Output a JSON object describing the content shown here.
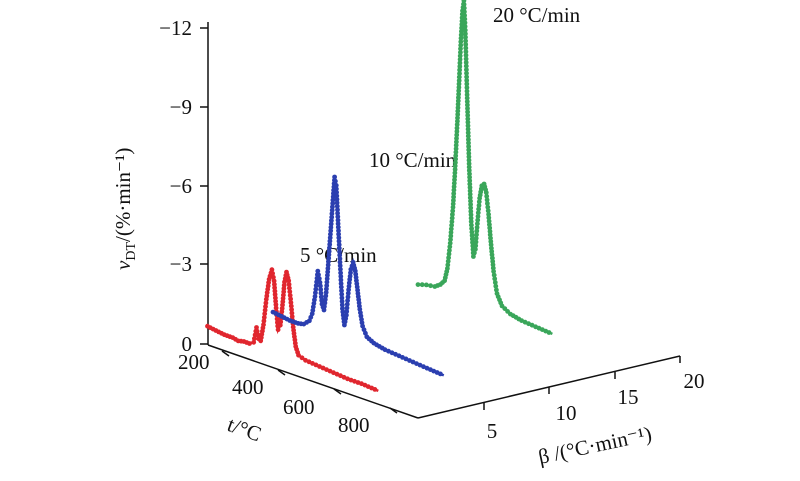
{
  "chart_data": {
    "type": "line",
    "title": "",
    "xlabel": "β /(°C·min⁻¹)",
    "tlabel": "t/°C",
    "ylabel_main": "v",
    "ylabel_sub": "DT",
    "ylabel_rest": "/(%·min⁻¹)",
    "beta_ticks": [
      "5",
      "10",
      "15",
      "20"
    ],
    "t_ticks": [
      "200",
      "400",
      "600",
      "800"
    ],
    "v_ticks": [
      "0",
      "−3",
      "−6",
      "−9",
      "−12"
    ],
    "vlim": [
      0,
      -12
    ],
    "tlim": [
      150,
      900
    ],
    "betalim": [
      0,
      20
    ],
    "series": [
      {
        "name": "5 °C/min",
        "beta": 5,
        "color": "#e0262e",
        "points": [
          [
            150,
            -0.2
          ],
          [
            180,
            -0.15
          ],
          [
            210,
            -0.1
          ],
          [
            240,
            -0.1
          ],
          [
            260,
            -0.05
          ],
          [
            280,
            -0.1
          ],
          [
            300,
            -0.1
          ],
          [
            315,
            -0.2
          ],
          [
            325,
            -0.8
          ],
          [
            333,
            -0.4
          ],
          [
            340,
            -0.35
          ],
          [
            350,
            -1.0
          ],
          [
            360,
            -2.0
          ],
          [
            370,
            -2.8
          ],
          [
            380,
            -3.2
          ],
          [
            388,
            -2.8
          ],
          [
            395,
            -1.8
          ],
          [
            402,
            -1.0
          ],
          [
            410,
            -1.2
          ],
          [
            418,
            -2.0
          ],
          [
            425,
            -2.9
          ],
          [
            432,
            -3.3
          ],
          [
            440,
            -3.0
          ],
          [
            448,
            -2.2
          ],
          [
            456,
            -1.3
          ],
          [
            465,
            -0.6
          ],
          [
            475,
            -0.3
          ],
          [
            500,
            -0.2
          ],
          [
            550,
            -0.15
          ],
          [
            600,
            -0.1
          ],
          [
            650,
            -0.05
          ],
          [
            700,
            -0.05
          ],
          [
            760,
            0
          ]
        ]
      },
      {
        "name": "10 °C/min",
        "beta": 10,
        "color": "#2b3fb0",
        "points": [
          [
            150,
            -0.15
          ],
          [
            180,
            -0.1
          ],
          [
            210,
            -0.05
          ],
          [
            240,
            -0.05
          ],
          [
            260,
            -0.1
          ],
          [
            280,
            -0.3
          ],
          [
            290,
            -0.6
          ],
          [
            300,
            -1.3
          ],
          [
            310,
            -2.3
          ],
          [
            318,
            -1.9
          ],
          [
            325,
            -1.1
          ],
          [
            332,
            -0.9
          ],
          [
            340,
            -1.6
          ],
          [
            348,
            -2.8
          ],
          [
            356,
            -4.0
          ],
          [
            364,
            -5.2
          ],
          [
            370,
            -6.1
          ],
          [
            376,
            -5.8
          ],
          [
            382,
            -4.5
          ],
          [
            390,
            -2.8
          ],
          [
            398,
            -1.2
          ],
          [
            405,
            -0.6
          ],
          [
            412,
            -1.0
          ],
          [
            420,
            -2.0
          ],
          [
            428,
            -2.8
          ],
          [
            436,
            -3.1
          ],
          [
            444,
            -2.8
          ],
          [
            452,
            -2.1
          ],
          [
            460,
            -1.4
          ],
          [
            470,
            -0.8
          ],
          [
            485,
            -0.45
          ],
          [
            510,
            -0.3
          ],
          [
            550,
            -0.2
          ],
          [
            600,
            -0.15
          ],
          [
            650,
            -0.1
          ],
          [
            700,
            -0.05
          ],
          [
            760,
            0
          ]
        ]
      },
      {
        "name": "20 °C/min",
        "beta": 20,
        "color": "#3aa65a",
        "points": [
          [
            200,
            -0.2
          ],
          [
            230,
            -0.3
          ],
          [
            260,
            -0.35
          ],
          [
            280,
            -0.5
          ],
          [
            295,
            -0.7
          ],
          [
            305,
            -1.2
          ],
          [
            315,
            -2.2
          ],
          [
            325,
            -3.6
          ],
          [
            333,
            -5.2
          ],
          [
            340,
            -6.8
          ],
          [
            347,
            -8.5
          ],
          [
            353,
            -10.0
          ],
          [
            359,
            -11.2
          ],
          [
            364,
            -11.6
          ],
          [
            369,
            -10.5
          ],
          [
            375,
            -8.2
          ],
          [
            382,
            -5.6
          ],
          [
            390,
            -3.3
          ],
          [
            398,
            -2.0
          ],
          [
            405,
            -2.3
          ],
          [
            412,
            -3.3
          ],
          [
            420,
            -4.3
          ],
          [
            428,
            -4.8
          ],
          [
            436,
            -4.9
          ],
          [
            444,
            -4.6
          ],
          [
            452,
            -3.8
          ],
          [
            460,
            -2.8
          ],
          [
            470,
            -1.7
          ],
          [
            482,
            -0.9
          ],
          [
            500,
            -0.5
          ],
          [
            530,
            -0.3
          ],
          [
            570,
            -0.2
          ],
          [
            620,
            -0.15
          ],
          [
            680,
            -0.1
          ]
        ]
      }
    ]
  }
}
